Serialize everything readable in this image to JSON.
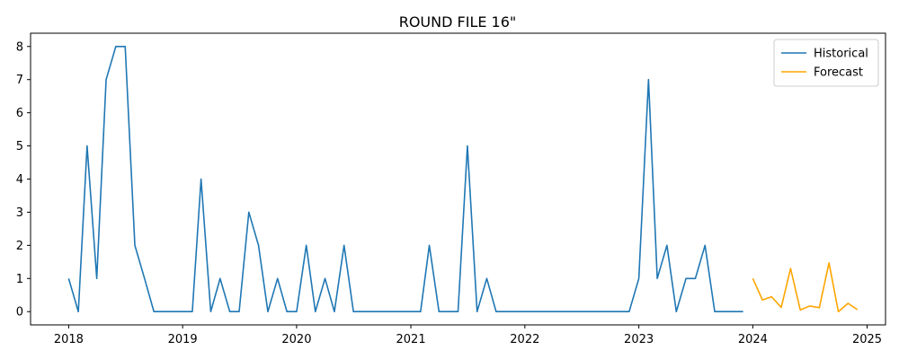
{
  "chart_data": {
    "type": "line",
    "title": "ROUND FILE 16\"",
    "xlabel": "",
    "ylabel": "",
    "xlim": [
      "2017-09-01",
      "2025-03-01"
    ],
    "ylim": [
      -0.4,
      8.4
    ],
    "x_ticks": [
      "2018",
      "2019",
      "2020",
      "2021",
      "2022",
      "2023",
      "2024",
      "2025"
    ],
    "x_tick_dates": [
      "2018-01-01",
      "2019-01-01",
      "2020-01-01",
      "2021-01-01",
      "2022-01-01",
      "2023-01-01",
      "2024-01-01",
      "2025-01-01"
    ],
    "y_ticks": [
      "0",
      "1",
      "2",
      "3",
      "4",
      "5",
      "6",
      "7",
      "8"
    ],
    "y_tick_values": [
      0,
      1,
      2,
      3,
      4,
      5,
      6,
      7,
      8
    ],
    "legend": {
      "position": "top-right"
    },
    "series": [
      {
        "name": "Historical",
        "color": "#1f77b4",
        "x": [
          "2018-01-01",
          "2018-02-01",
          "2018-03-01",
          "2018-04-01",
          "2018-05-01",
          "2018-06-01",
          "2018-07-01",
          "2018-08-01",
          "2018-09-01",
          "2018-10-01",
          "2018-11-01",
          "2018-12-01",
          "2019-01-01",
          "2019-02-01",
          "2019-03-01",
          "2019-04-01",
          "2019-05-01",
          "2019-06-01",
          "2019-07-01",
          "2019-08-01",
          "2019-09-01",
          "2019-10-01",
          "2019-11-01",
          "2019-12-01",
          "2020-01-01",
          "2020-02-01",
          "2020-03-01",
          "2020-04-01",
          "2020-05-01",
          "2020-06-01",
          "2020-07-01",
          "2020-08-01",
          "2020-09-01",
          "2020-10-01",
          "2020-11-01",
          "2020-12-01",
          "2021-01-01",
          "2021-02-01",
          "2021-03-01",
          "2021-04-01",
          "2021-05-01",
          "2021-06-01",
          "2021-07-01",
          "2021-08-01",
          "2021-09-01",
          "2021-10-01",
          "2021-11-01",
          "2021-12-01",
          "2022-01-01",
          "2022-02-01",
          "2022-03-01",
          "2022-04-01",
          "2022-05-01",
          "2022-06-01",
          "2022-07-01",
          "2022-08-01",
          "2022-09-01",
          "2022-10-01",
          "2022-11-01",
          "2022-12-01",
          "2023-01-01",
          "2023-02-01",
          "2023-03-01",
          "2023-04-01",
          "2023-05-01",
          "2023-06-01",
          "2023-07-01",
          "2023-08-01",
          "2023-09-01",
          "2023-10-01",
          "2023-11-01",
          "2023-12-01"
        ],
        "values": [
          1,
          0,
          5,
          1,
          7,
          8,
          8,
          2,
          1,
          0,
          0,
          0,
          0,
          0,
          4,
          0,
          1,
          0,
          0,
          3,
          2,
          0,
          1,
          0,
          0,
          2,
          0,
          1,
          0,
          2,
          0,
          0,
          0,
          0,
          0,
          0,
          0,
          0,
          2,
          0,
          0,
          0,
          5,
          0,
          1,
          0,
          0,
          0,
          0,
          0,
          0,
          0,
          0,
          0,
          0,
          0,
          0,
          0,
          0,
          0,
          1,
          7,
          1,
          2,
          0,
          1,
          1,
          2,
          0,
          0,
          0,
          0
        ]
      },
      {
        "name": "Forecast",
        "color": "#ffa500",
        "x": [
          "2024-01-01",
          "2024-02-01",
          "2024-03-01",
          "2024-04-01",
          "2024-05-01",
          "2024-06-01",
          "2024-07-01",
          "2024-08-01",
          "2024-09-01",
          "2024-10-01",
          "2024-11-01",
          "2024-12-01"
        ],
        "values": [
          1.0,
          0.35,
          0.45,
          0.13,
          1.3,
          0.05,
          0.17,
          0.12,
          1.47,
          0.0,
          0.25,
          0.06
        ]
      }
    ]
  }
}
